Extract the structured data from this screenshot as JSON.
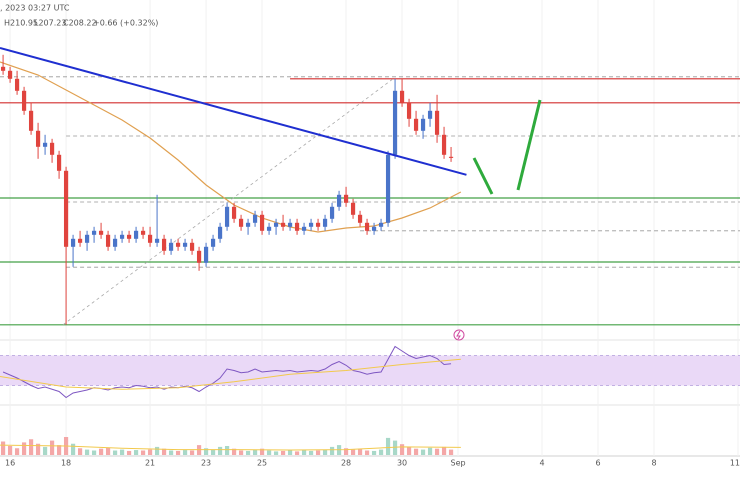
{
  "header": {
    "date": ", 2023 03:27 UTC",
    "high": "H210.95",
    "low": "L207.23",
    "close": "C208.22",
    "change": "+0.66 (+0.32%)"
  },
  "chart_data": {
    "type": "candlestick",
    "xlim": [
      15.64,
      42.07
    ],
    "ylim": [
      162.7,
      247.7
    ],
    "xticks": [
      16,
      18,
      21,
      23,
      25,
      28,
      30,
      {
        "value": 32,
        "label": "Sep"
      },
      {
        "value": 35,
        "label": "4"
      },
      {
        "value": 37,
        "label": "6"
      },
      {
        "value": 39,
        "label": "8"
      },
      {
        "value": 42,
        "label": "11"
      }
    ],
    "grid": true,
    "up_color": "#4a74c9",
    "down_color": "#e0443e",
    "x": [
      15.75,
      16,
      16.25,
      16.5,
      16.75,
      17,
      17.25,
      17.5,
      17.75,
      18,
      18.25,
      18.5,
      18.75,
      19,
      19.25,
      19.5,
      19.75,
      20,
      20.25,
      20.5,
      20.75,
      21,
      21.25,
      21.5,
      21.75,
      22,
      22.25,
      22.5,
      22.75,
      23,
      23.25,
      23.5,
      23.75,
      24,
      24.25,
      24.5,
      24.75,
      25,
      25.25,
      25.5,
      25.75,
      26,
      26.25,
      26.5,
      26.75,
      27,
      27.25,
      27.5,
      27.75,
      28,
      28.25,
      28.5,
      28.75,
      29,
      29.25,
      29.5,
      29.75,
      30,
      30.25,
      30.5,
      30.75,
      31,
      31.25,
      31.5,
      31.75
    ],
    "open": [
      231,
      230,
      228,
      225,
      220,
      215,
      211,
      212,
      209,
      205,
      186,
      188,
      187,
      189,
      190,
      189,
      186,
      188,
      189,
      188,
      190,
      189,
      187,
      188,
      185,
      187,
      186,
      187,
      185,
      182,
      186,
      188,
      191,
      196,
      193,
      191,
      192,
      194,
      190,
      191,
      192,
      191,
      192,
      190,
      191,
      192,
      191,
      193,
      196,
      199,
      197,
      194,
      192,
      190,
      191,
      192,
      209,
      225,
      222,
      218,
      215,
      218,
      220,
      214,
      208.5
    ],
    "high": [
      234,
      231,
      230,
      226,
      222,
      217,
      214,
      213,
      210,
      206,
      189,
      190,
      190,
      191,
      192,
      190,
      189,
      190,
      190,
      191,
      191,
      191,
      199,
      189,
      188,
      188,
      188,
      188,
      186,
      187,
      189,
      192,
      197,
      197,
      194,
      193,
      195,
      195,
      192,
      193,
      194,
      193,
      193,
      192,
      193,
      193,
      194,
      197,
      200,
      201,
      198,
      195,
      193,
      192,
      193,
      210,
      228,
      228,
      223,
      220,
      219,
      222,
      224,
      216,
      210.95
    ],
    "low": [
      229,
      227,
      224,
      219,
      214,
      208,
      209,
      207,
      203,
      166.5,
      181,
      186,
      185,
      187,
      188,
      185,
      185,
      187,
      187,
      187,
      188,
      186,
      186,
      184,
      184,
      185,
      185,
      184,
      180,
      181,
      185,
      187,
      190,
      192,
      190,
      189,
      191,
      189,
      189,
      189,
      190,
      190,
      189,
      189,
      190,
      190,
      190,
      192,
      195,
      196,
      193,
      191,
      189,
      189,
      190,
      191,
      208,
      221,
      216,
      214,
      213,
      216,
      212,
      208,
      207.23
    ],
    "close": [
      230,
      228,
      225,
      220,
      215,
      211,
      212,
      209,
      205,
      186,
      188,
      187,
      189,
      190,
      189,
      186,
      188,
      189,
      188,
      190,
      189,
      187,
      188,
      185,
      187,
      186,
      187,
      185,
      182,
      186,
      188,
      191,
      196,
      193,
      191,
      192,
      194,
      190,
      191,
      192,
      191,
      192,
      190,
      191,
      192,
      191,
      193,
      196,
      199,
      197,
      194,
      192,
      190,
      191,
      192,
      209,
      225,
      222,
      218,
      215,
      218,
      220,
      214,
      209,
      208.22
    ],
    "ma": {
      "color": "#e0a050",
      "x": [
        15.64,
        17,
        18,
        19,
        20,
        21,
        22,
        23,
        24,
        25,
        26,
        27,
        28,
        29,
        30,
        31,
        32.1
      ],
      "values": [
        232.2,
        228.95,
        225.2,
        221.45,
        217.7,
        213.2,
        207.7,
        201.45,
        196.45,
        193.2,
        190.95,
        189.7,
        190.7,
        191.2,
        193.2,
        195.7,
        199.7
      ]
    },
    "trendline": {
      "color": "#1f2fd0",
      "x": [
        15.64,
        32.3
      ],
      "values": [
        235.7,
        204
      ]
    },
    "diagonal": {
      "color": "#aaaaaa",
      "x": [
        17.89,
        29.68
      ],
      "values": [
        166.5,
        228
      ]
    },
    "levels": [
      {
        "value": 228,
        "color": "#d32f2f",
        "dash": false,
        "x0": 26
      },
      {
        "value": 222,
        "color": "#d32f2f",
        "dash": false,
        "x0": 15.64
      },
      {
        "value": 198.2,
        "color": "#43a047",
        "dash": false,
        "x0": 15.64
      },
      {
        "value": 182.2,
        "color": "#43a047",
        "dash": false,
        "x0": 15.64
      },
      {
        "value": 166.5,
        "color": "#43a047",
        "dash": false,
        "x0": 15.64
      },
      {
        "value": 228.5,
        "color": "#999999",
        "dash": true,
        "x0": 15.64
      },
      {
        "value": 213.7,
        "color": "#999999",
        "dash": true,
        "x0": 18
      },
      {
        "value": 197.2,
        "color": "#999999",
        "dash": true,
        "x0": 18
      },
      {
        "value": 190,
        "color": "#999999",
        "dash": true,
        "x0": 28.5
      },
      {
        "value": 180.9,
        "color": "#999999",
        "dash": true,
        "x0": 18
      }
    ],
    "rsi": {
      "color": "#7e57c2",
      "ylim": [
        0,
        100
      ],
      "band": [
        30,
        70
      ],
      "band_color": "#ead9f7",
      "values": [
        48,
        44,
        40,
        35,
        30,
        26,
        28,
        25,
        22,
        14,
        20,
        22,
        24,
        27,
        26,
        24,
        27,
        28,
        27,
        30,
        29,
        27,
        28,
        25,
        28,
        27,
        29,
        27,
        22,
        28,
        33,
        40,
        52,
        50,
        47,
        48,
        52,
        48,
        49,
        50,
        49,
        50,
        48,
        49,
        50,
        49,
        52,
        58,
        62,
        57,
        50,
        48,
        45,
        47,
        48,
        65,
        82,
        76,
        70,
        66,
        68,
        70,
        66,
        58,
        59
      ],
      "ma": {
        "color": "#f2c94c",
        "x": [
          15.64,
          18,
          20,
          22,
          24,
          26,
          28,
          30,
          32.1
        ],
        "values": [
          42,
          28,
          25,
          27,
          35,
          45,
          50,
          58,
          65
        ]
      }
    },
    "volume": {
      "ylim": [
        0,
        100
      ],
      "up_color": "#a8d8c8",
      "down_color": "#f4a7a7",
      "values": [
        30,
        20,
        15,
        28,
        35,
        25,
        18,
        32,
        22,
        40,
        25,
        15,
        12,
        10,
        14,
        16,
        10,
        12,
        9,
        11,
        10,
        12,
        18,
        14,
        10,
        9,
        11,
        10,
        22,
        15,
        12,
        18,
        20,
        14,
        10,
        9,
        12,
        14,
        10,
        8,
        9,
        10,
        8,
        11,
        9,
        10,
        12,
        18,
        22,
        15,
        12,
        14,
        10,
        9,
        12,
        38,
        32,
        24,
        18,
        14,
        12,
        16,
        14,
        18,
        12
      ],
      "ma": {
        "color": "#f2c94c",
        "x": [
          15.64,
          18,
          20,
          22,
          24,
          26,
          28,
          30,
          32.1
        ],
        "values": [
          22,
          20,
          15,
          12,
          12,
          11,
          12,
          18,
          17
        ]
      }
    }
  }
}
